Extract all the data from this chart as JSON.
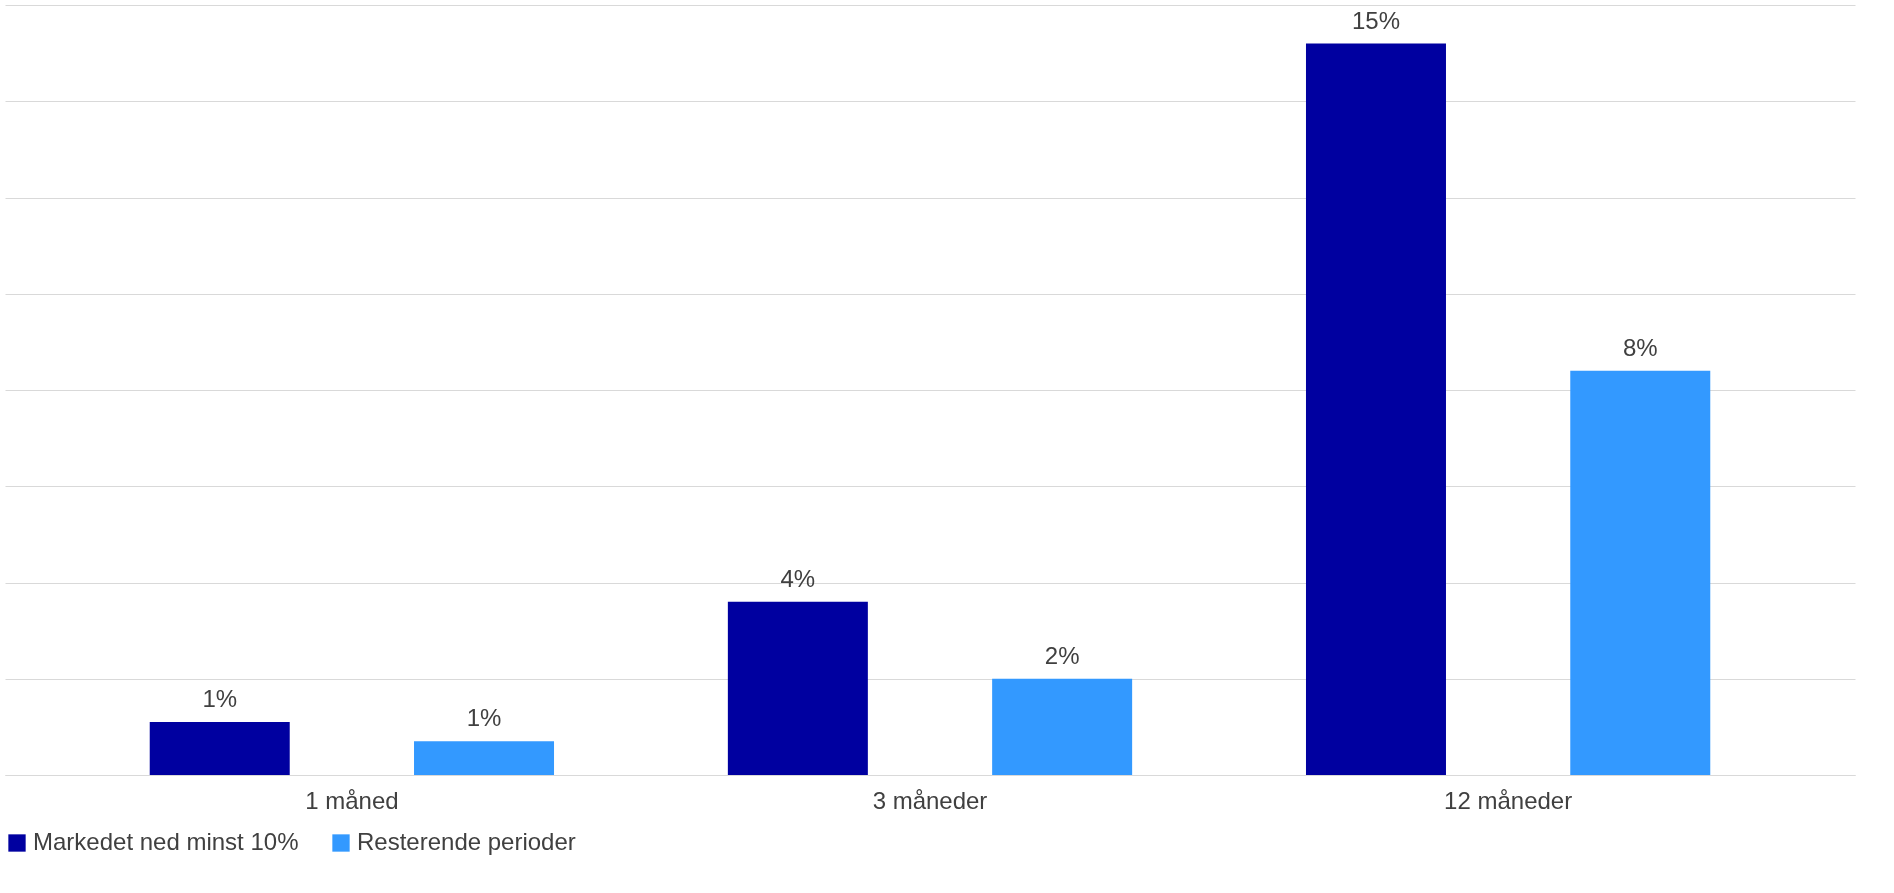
{
  "chart_data": {
    "type": "bar",
    "categories": [
      "1 måned",
      "3 måneder",
      "12 måneder"
    ],
    "series": [
      {
        "name": "Markedet ned minst 10%",
        "color": "#0000a0",
        "values": [
          1.1,
          3.6,
          15.2
        ],
        "value_labels": [
          "1%",
          "4%",
          "15%"
        ]
      },
      {
        "name": "Resterende perioder",
        "color": "#3399ff",
        "values": [
          0.7,
          2.0,
          8.4
        ],
        "value_labels": [
          "1%",
          "2%",
          "8%"
        ]
      }
    ],
    "ylim": [
      0,
      16
    ],
    "yticks": [
      {
        "value": 0,
        "label": null
      },
      {
        "value": 2,
        "label": null
      },
      {
        "value": 4,
        "label": null
      },
      {
        "value": 6,
        "label": null
      },
      {
        "value": 8,
        "label": null
      },
      {
        "value": 10,
        "label": null
      },
      {
        "value": 12,
        "label": null
      },
      {
        "value": 14,
        "label": null
      },
      {
        "value": 16,
        "label": null
      }
    ],
    "tick_labels": "x",
    "grid": "y",
    "legend": "bottom"
  }
}
